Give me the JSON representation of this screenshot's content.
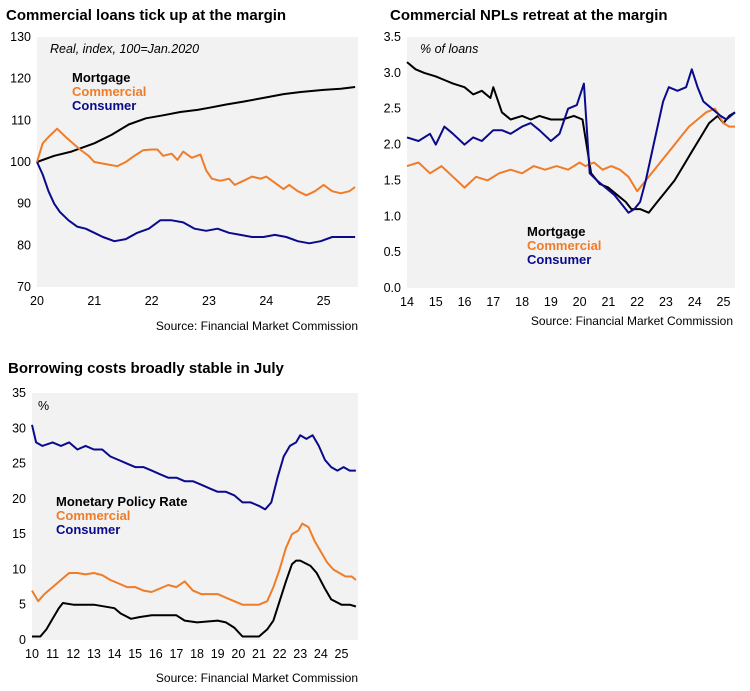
{
  "colors": {
    "mortgage": "#000000",
    "commercial": "#f07c28",
    "consumer": "#0a0a8c",
    "policy": "#000000",
    "plot_bg": "#f2f2f2"
  },
  "chart_data": [
    {
      "type": "line",
      "title": "Commercial loans tick up at the margin",
      "unit_note": "Real, index, 100=Jan.2020",
      "source": "Source: Financial Market Commission",
      "xlim": [
        2020,
        2025.6
      ],
      "ylim": [
        70,
        130
      ],
      "x_ticks": [
        {
          "v": 2020,
          "label": "20"
        },
        {
          "v": 2021,
          "label": "21"
        },
        {
          "v": 2022,
          "label": "22"
        },
        {
          "v": 2023,
          "label": "23"
        },
        {
          "v": 2024,
          "label": "24"
        },
        {
          "v": 2025,
          "label": "25"
        }
      ],
      "y_ticks": [
        70,
        80,
        90,
        100,
        110,
        120,
        130
      ],
      "legend_position": "top-left",
      "series": [
        {
          "name": "Mortgage",
          "color_key": "mortgage",
          "x": [
            2020,
            2020.3,
            2020.6,
            2021,
            2021.3,
            2021.6,
            2021.9,
            2022.2,
            2022.5,
            2022.8,
            2023,
            2023.3,
            2023.6,
            2024,
            2024.3,
            2024.6,
            2025,
            2025.3,
            2025.55
          ],
          "y": [
            100,
            101.5,
            102.5,
            104.5,
            106.5,
            109,
            110.5,
            111.2,
            112,
            112.5,
            113,
            113.8,
            114.5,
            115.5,
            116.3,
            116.8,
            117.3,
            117.6,
            118
          ]
        },
        {
          "name": "Commercial",
          "color_key": "commercial",
          "x": [
            2020,
            2020.1,
            2020.2,
            2020.35,
            2020.5,
            2020.6,
            2020.75,
            2020.9,
            2021,
            2021.2,
            2021.4,
            2021.55,
            2021.7,
            2021.85,
            2022,
            2022.1,
            2022.2,
            2022.35,
            2022.45,
            2022.55,
            2022.7,
            2022.85,
            2022.95,
            2023.05,
            2023.2,
            2023.35,
            2023.45,
            2023.6,
            2023.75,
            2023.9,
            2024,
            2024.15,
            2024.3,
            2024.4,
            2024.55,
            2024.7,
            2024.85,
            2025,
            2025.15,
            2025.3,
            2025.45,
            2025.55
          ],
          "y": [
            100,
            104.5,
            106,
            108,
            106,
            104.8,
            103,
            101.5,
            100,
            99.5,
            99,
            100,
            101.5,
            102.8,
            103,
            103,
            101.5,
            102,
            100.5,
            102.5,
            101,
            101.8,
            98,
            96,
            95.5,
            96,
            94.5,
            95.5,
            96.5,
            96,
            96.5,
            95,
            93.5,
            94.5,
            93,
            92,
            93,
            94.5,
            93,
            92.5,
            93,
            94
          ]
        },
        {
          "name": "Consumer",
          "color_key": "consumer",
          "x": [
            2020,
            2020.1,
            2020.2,
            2020.3,
            2020.4,
            2020.55,
            2020.7,
            2020.85,
            2021,
            2021.15,
            2021.35,
            2021.55,
            2021.75,
            2021.95,
            2022.15,
            2022.35,
            2022.55,
            2022.75,
            2022.95,
            2023.15,
            2023.35,
            2023.55,
            2023.75,
            2023.95,
            2024.15,
            2024.35,
            2024.55,
            2024.75,
            2024.95,
            2025.15,
            2025.35,
            2025.55
          ],
          "y": [
            100,
            97,
            93,
            90,
            88,
            86,
            84.5,
            84,
            83,
            82,
            81,
            81.5,
            83,
            84,
            86,
            86,
            85.5,
            84,
            83.5,
            84,
            83,
            82.5,
            82,
            82,
            82.5,
            82,
            81,
            80.5,
            81,
            82,
            82,
            82
          ]
        }
      ]
    },
    {
      "type": "line",
      "title": "Commercial NPLs retreat at the margin",
      "unit_note": "% of loans",
      "source": "Source: Financial Market Commission",
      "xlim": [
        2014,
        2025.4
      ],
      "ylim": [
        0,
        3.5
      ],
      "x_ticks": [
        {
          "v": 2014,
          "label": "14"
        },
        {
          "v": 2015,
          "label": "15"
        },
        {
          "v": 2016,
          "label": "16"
        },
        {
          "v": 2017,
          "label": "17"
        },
        {
          "v": 2018,
          "label": "18"
        },
        {
          "v": 2019,
          "label": "19"
        },
        {
          "v": 2020,
          "label": "20"
        },
        {
          "v": 2021,
          "label": "21"
        },
        {
          "v": 2022,
          "label": "22"
        },
        {
          "v": 2023,
          "label": "23"
        },
        {
          "v": 2024,
          "label": "24"
        },
        {
          "v": 2025,
          "label": "25"
        }
      ],
      "y_ticks": [
        "0.0",
        "0.5",
        "1.0",
        "1.5",
        "2.0",
        "2.5",
        "3.0",
        "3.5"
      ],
      "legend_position": "bottom-center",
      "series": [
        {
          "name": "Mortgage",
          "color_key": "mortgage",
          "x": [
            2014,
            2014.3,
            2014.6,
            2015,
            2015.3,
            2015.6,
            2016,
            2016.3,
            2016.6,
            2016.9,
            2017,
            2017.3,
            2017.6,
            2018,
            2018.3,
            2018.6,
            2019,
            2019.4,
            2019.8,
            2020.1,
            2020.4,
            2020.7,
            2021,
            2021.3,
            2021.6,
            2021.8,
            2022.1,
            2022.4,
            2022.7,
            2023,
            2023.3,
            2023.6,
            2023.9,
            2024.2,
            2024.5,
            2024.8,
            2025,
            2025.2,
            2025.4
          ],
          "y": [
            3.15,
            3.05,
            3.0,
            2.95,
            2.9,
            2.85,
            2.8,
            2.7,
            2.75,
            2.65,
            2.8,
            2.45,
            2.35,
            2.4,
            2.35,
            2.4,
            2.35,
            2.35,
            2.4,
            2.35,
            1.6,
            1.45,
            1.4,
            1.3,
            1.2,
            1.1,
            1.1,
            1.05,
            1.2,
            1.35,
            1.5,
            1.7,
            1.9,
            2.1,
            2.3,
            2.4,
            2.3,
            2.4,
            2.45
          ]
        },
        {
          "name": "Commercial",
          "color_key": "commercial",
          "x": [
            2014,
            2014.4,
            2014.8,
            2015.2,
            2015.6,
            2016,
            2016.4,
            2016.8,
            2017.2,
            2017.6,
            2018,
            2018.4,
            2018.8,
            2019.2,
            2019.6,
            2020,
            2020.2,
            2020.5,
            2020.8,
            2021.1,
            2021.4,
            2021.7,
            2022,
            2022.3,
            2022.6,
            2022.9,
            2023.2,
            2023.5,
            2023.8,
            2024.1,
            2024.4,
            2024.7,
            2025,
            2025.2,
            2025.4
          ],
          "y": [
            1.7,
            1.75,
            1.6,
            1.7,
            1.55,
            1.4,
            1.55,
            1.5,
            1.6,
            1.65,
            1.6,
            1.7,
            1.65,
            1.7,
            1.65,
            1.75,
            1.7,
            1.75,
            1.65,
            1.7,
            1.65,
            1.55,
            1.35,
            1.5,
            1.65,
            1.8,
            1.95,
            2.1,
            2.25,
            2.35,
            2.45,
            2.5,
            2.3,
            2.25,
            2.25
          ]
        },
        {
          "name": "Consumer",
          "color_key": "consumer",
          "x": [
            2014,
            2014.4,
            2014.8,
            2015,
            2015.3,
            2015.6,
            2016,
            2016.3,
            2016.6,
            2017,
            2017.3,
            2017.6,
            2018,
            2018.3,
            2018.6,
            2019,
            2019.3,
            2019.6,
            2019.9,
            2020.15,
            2020.35,
            2020.6,
            2020.9,
            2021.2,
            2021.5,
            2021.7,
            2021.9,
            2022.1,
            2022.3,
            2022.6,
            2022.9,
            2023.1,
            2023.4,
            2023.7,
            2023.9,
            2024.1,
            2024.3,
            2024.6,
            2024.9,
            2025.1,
            2025.4
          ],
          "y": [
            2.1,
            2.05,
            2.15,
            2.0,
            2.25,
            2.15,
            2.0,
            2.1,
            2.05,
            2.2,
            2.2,
            2.15,
            2.25,
            2.3,
            2.2,
            2.05,
            2.15,
            2.5,
            2.55,
            2.85,
            1.6,
            1.5,
            1.4,
            1.3,
            1.15,
            1.05,
            1.1,
            1.2,
            1.5,
            2.05,
            2.6,
            2.8,
            2.75,
            2.8,
            3.05,
            2.8,
            2.6,
            2.5,
            2.4,
            2.35,
            2.45
          ]
        }
      ]
    },
    {
      "type": "line",
      "title": "Borrowing costs broadly stable in July",
      "unit_note": "%",
      "source": "Source: Financial Market Commission",
      "xlim": [
        2010,
        2025.8
      ],
      "ylim": [
        0,
        35
      ],
      "x_ticks": [
        {
          "v": 2010,
          "label": "10"
        },
        {
          "v": 2011,
          "label": "11"
        },
        {
          "v": 2012,
          "label": "12"
        },
        {
          "v": 2013,
          "label": "13"
        },
        {
          "v": 2014,
          "label": "14"
        },
        {
          "v": 2015,
          "label": "15"
        },
        {
          "v": 2016,
          "label": "16"
        },
        {
          "v": 2017,
          "label": "17"
        },
        {
          "v": 2018,
          "label": "18"
        },
        {
          "v": 2019,
          "label": "19"
        },
        {
          "v": 2020,
          "label": "20"
        },
        {
          "v": 2021,
          "label": "21"
        },
        {
          "v": 2022,
          "label": "22"
        },
        {
          "v": 2023,
          "label": "23"
        },
        {
          "v": 2024,
          "label": "24"
        },
        {
          "v": 2025,
          "label": "25"
        }
      ],
      "y_ticks": [
        0,
        5,
        10,
        15,
        20,
        25,
        30,
        35
      ],
      "legend_position": "left-center",
      "series": [
        {
          "name": "Monetary Policy Rate",
          "color_key": "policy",
          "x": [
            2010,
            2010.4,
            2010.7,
            2011.0,
            2011.3,
            2011.5,
            2012,
            2013,
            2014,
            2014.3,
            2014.8,
            2015.2,
            2015.8,
            2016.2,
            2017,
            2017.4,
            2018,
            2019,
            2019.4,
            2019.8,
            2020.2,
            2021.0,
            2021.4,
            2021.7,
            2022.0,
            2022.3,
            2022.6,
            2022.8,
            2023.0,
            2023.5,
            2023.8,
            2024.2,
            2024.5,
            2025,
            2025.4,
            2025.7
          ],
          "y": [
            0.5,
            0.5,
            1.5,
            3,
            4.5,
            5.25,
            5,
            5,
            4.5,
            3.75,
            3,
            3.25,
            3.5,
            3.5,
            3.5,
            2.75,
            2.5,
            2.75,
            2.5,
            1.75,
            0.5,
            0.5,
            1.5,
            2.75,
            5.5,
            8.25,
            10.75,
            11.25,
            11.25,
            10.5,
            9.5,
            7.25,
            5.75,
            5,
            5,
            4.75
          ]
        },
        {
          "name": "Commercial",
          "color_key": "commercial",
          "x": [
            2010,
            2010.3,
            2010.6,
            2011,
            2011.4,
            2011.8,
            2012.2,
            2012.6,
            2013,
            2013.4,
            2013.8,
            2014.2,
            2014.6,
            2015,
            2015.4,
            2015.8,
            2016.2,
            2016.6,
            2017,
            2017.4,
            2017.8,
            2018.2,
            2018.6,
            2019,
            2019.4,
            2019.8,
            2020.2,
            2020.6,
            2021,
            2021.4,
            2021.7,
            2022,
            2022.3,
            2022.6,
            2022.9,
            2023.1,
            2023.4,
            2023.7,
            2024,
            2024.3,
            2024.6,
            2024.9,
            2025.2,
            2025.5,
            2025.7
          ],
          "y": [
            7,
            5.5,
            6.5,
            7.5,
            8.5,
            9.5,
            9.5,
            9.3,
            9.5,
            9.2,
            8.5,
            8.0,
            7.5,
            7.5,
            7.0,
            6.8,
            7.3,
            7.8,
            7.5,
            8.3,
            7.0,
            6.5,
            6.5,
            6.5,
            6.0,
            5.5,
            5.0,
            5.0,
            5.0,
            5.5,
            7.5,
            10.0,
            13.0,
            15.0,
            15.5,
            16.5,
            16.0,
            14.0,
            12.5,
            11.0,
            10.0,
            9.5,
            9.0,
            9.0,
            8.5
          ]
        },
        {
          "name": "Consumer",
          "color_key": "consumer",
          "x": [
            2010,
            2010.2,
            2010.5,
            2011,
            2011.4,
            2011.8,
            2012.2,
            2012.6,
            2013,
            2013.4,
            2013.8,
            2014.2,
            2014.6,
            2015,
            2015.4,
            2015.8,
            2016.2,
            2016.6,
            2017,
            2017.4,
            2017.8,
            2018.2,
            2018.6,
            2019,
            2019.4,
            2019.8,
            2020.2,
            2020.6,
            2021,
            2021.3,
            2021.6,
            2021.9,
            2022.2,
            2022.5,
            2022.8,
            2023.0,
            2023.3,
            2023.6,
            2023.9,
            2024.2,
            2024.5,
            2024.8,
            2025.1,
            2025.4,
            2025.7
          ],
          "y": [
            30.5,
            28,
            27.5,
            28,
            27.5,
            28,
            27,
            27.5,
            27,
            27,
            26,
            25.5,
            25,
            24.5,
            24.5,
            24,
            23.5,
            23,
            23,
            22.5,
            22.5,
            22,
            21.5,
            21,
            21,
            20.5,
            19.5,
            19.5,
            19,
            18.5,
            19.5,
            23,
            26,
            27.5,
            28,
            29,
            28.5,
            29,
            27.5,
            25.5,
            24.5,
            24,
            24.5,
            24,
            24
          ]
        }
      ]
    }
  ]
}
